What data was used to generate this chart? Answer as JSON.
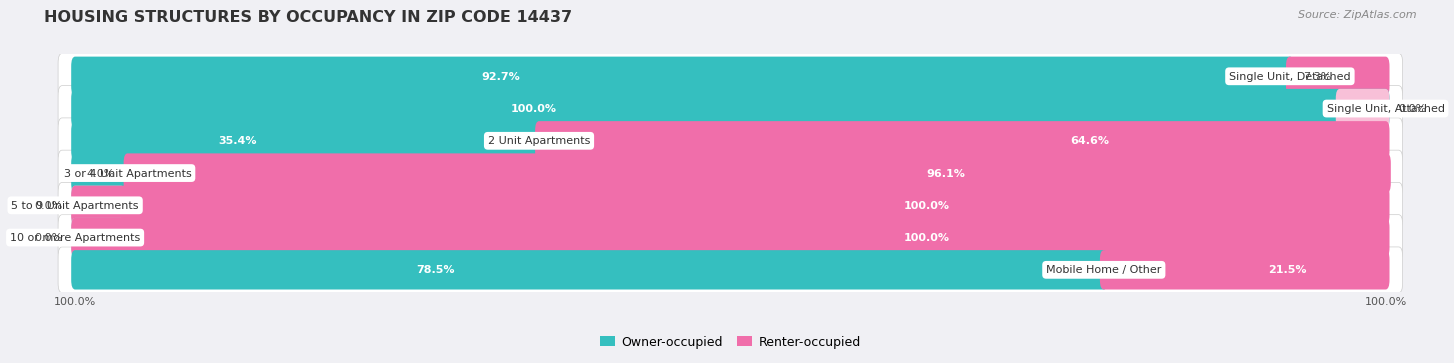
{
  "title": "HOUSING STRUCTURES BY OCCUPANCY IN ZIP CODE 14437",
  "source": "Source: ZipAtlas.com",
  "categories": [
    "Single Unit, Detached",
    "Single Unit, Attached",
    "2 Unit Apartments",
    "3 or 4 Unit Apartments",
    "5 to 9 Unit Apartments",
    "10 or more Apartments",
    "Mobile Home / Other"
  ],
  "owner_pct": [
    92.7,
    100.0,
    35.4,
    4.0,
    0.0,
    0.0,
    78.5
  ],
  "renter_pct": [
    7.3,
    0.0,
    64.6,
    96.1,
    100.0,
    100.0,
    21.5
  ],
  "owner_color": "#35bfbf",
  "renter_color": "#f06eaa",
  "owner_color_light": "#b2e0e0",
  "renter_color_light": "#f8c0d8",
  "row_bg": "#e8e8ec",
  "background_color": "#f0f0f4",
  "title_fontsize": 11.5,
  "bar_label_fontsize": 8,
  "cat_label_fontsize": 8,
  "axis_label_fontsize": 8,
  "legend_fontsize": 9,
  "source_fontsize": 8
}
